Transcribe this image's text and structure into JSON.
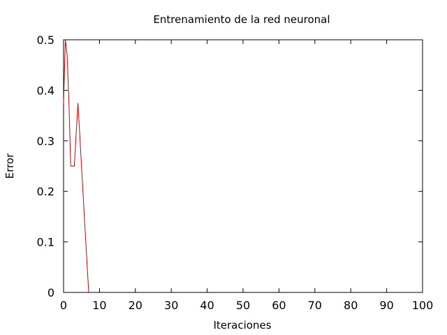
{
  "chart_data": {
    "type": "line",
    "title": "Entrenamiento de la red neuronal",
    "xlabel": "Iteraciones",
    "ylabel": "Error",
    "xlim": [
      0,
      100
    ],
    "ylim": [
      0,
      0.5
    ],
    "xticks": [
      0,
      10,
      20,
      30,
      40,
      50,
      60,
      70,
      80,
      90,
      100
    ],
    "yticks": [
      0,
      0.1,
      0.2,
      0.3,
      0.4,
      0.5
    ],
    "xtick_labels": [
      "0",
      "10",
      "20",
      "30",
      "40",
      "50",
      "60",
      "70",
      "80",
      "90",
      "100"
    ],
    "ytick_labels": [
      "0",
      "0.1",
      "0.2",
      "0.3",
      "0.4",
      "0.5"
    ],
    "grid": false,
    "legend": "none",
    "series": [
      {
        "color": "#cc0000",
        "x": [
          0,
          0.5,
          1,
          1.5,
          2,
          3,
          4,
          5,
          6,
          7
        ],
        "y": [
          0.375,
          0.5,
          0.47,
          0.375,
          0.25,
          0.25,
          0.375,
          0.25,
          0.125,
          0
        ]
      }
    ]
  }
}
